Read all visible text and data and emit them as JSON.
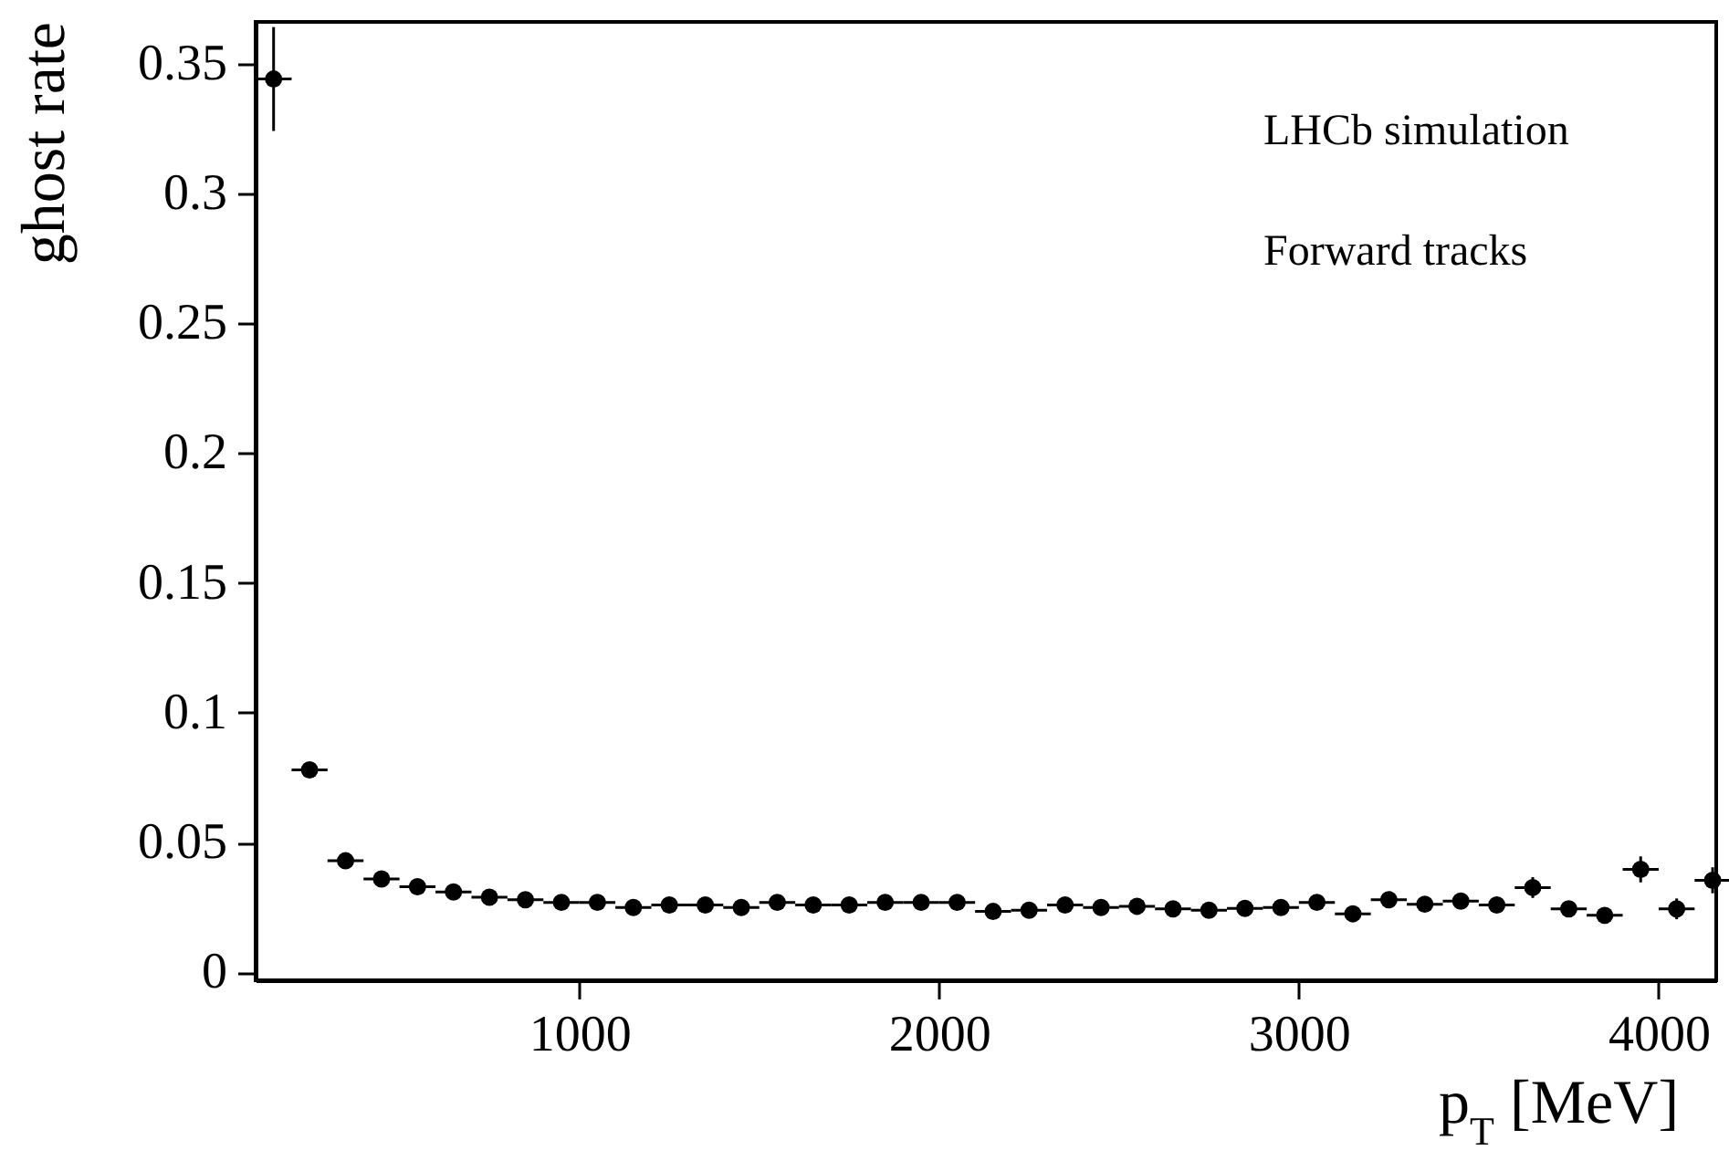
{
  "chart_data": {
    "type": "scatter",
    "xlabel": "p$_{T}$ [MeV]",
    "ylabel": "ghost rate",
    "annotations": [
      "LHCb simulation",
      "Forward tracks"
    ],
    "x": [
      150,
      250,
      350,
      450,
      550,
      650,
      750,
      850,
      950,
      1050,
      1150,
      1250,
      1350,
      1450,
      1550,
      1650,
      1750,
      1850,
      1950,
      2050,
      2150,
      2250,
      2350,
      2450,
      2550,
      2650,
      2750,
      2850,
      2950,
      3050,
      3150,
      3250,
      3350,
      3450,
      3550,
      3650,
      3750,
      3850,
      3950,
      4050,
      4150
    ],
    "series": [
      {
        "color": "#000000",
        "values": [
          0.344,
          0.078,
          0.043,
          0.036,
          0.033,
          0.031,
          0.029,
          0.028,
          0.027,
          0.027,
          0.025,
          0.026,
          0.026,
          0.025,
          0.027,
          0.026,
          0.026,
          0.027,
          0.027,
          0.027,
          0.0235,
          0.024,
          0.026,
          0.025,
          0.0255,
          0.0245,
          0.024,
          0.0247,
          0.025,
          0.027,
          0.0226,
          0.028,
          0.0263,
          0.0275,
          0.026,
          0.0327,
          0.0245,
          0.022,
          0.0397,
          0.0245,
          0.0355
        ],
        "errors": [
          0.02,
          0.002,
          0.002,
          0.001,
          0.001,
          0.001,
          0.001,
          0.001,
          0.001,
          0.001,
          0.001,
          0.001,
          0.001,
          0.001,
          0.001,
          0.001,
          0.001,
          0.001,
          0.001,
          0.001,
          0.001,
          0.001,
          0.001,
          0.001,
          0.001,
          0.001,
          0.001,
          0.001,
          0.001,
          0.002,
          0.002,
          0.002,
          0.002,
          0.002,
          0.003,
          0.004,
          0.003,
          0.003,
          0.005,
          0.004,
          0.005
        ],
        "xerrors": [
          50,
          50,
          50,
          50,
          50,
          50,
          50,
          50,
          50,
          50,
          50,
          50,
          50,
          50,
          50,
          50,
          50,
          50,
          50,
          50,
          50,
          50,
          50,
          50,
          50,
          50,
          50,
          50,
          50,
          50,
          50,
          50,
          50,
          50,
          50,
          50,
          50,
          50,
          50,
          50,
          50
        ]
      }
    ],
    "xlim": [
      100,
      4160
    ],
    "ylim": [
      -0.003,
      0.366
    ],
    "xticks": [
      1000,
      2000,
      3000,
      4000
    ],
    "yticks": [
      0,
      0.05,
      0.1,
      0.15,
      0.2,
      0.25,
      0.3,
      0.35
    ],
    "marker": "circle",
    "grid": false
  }
}
